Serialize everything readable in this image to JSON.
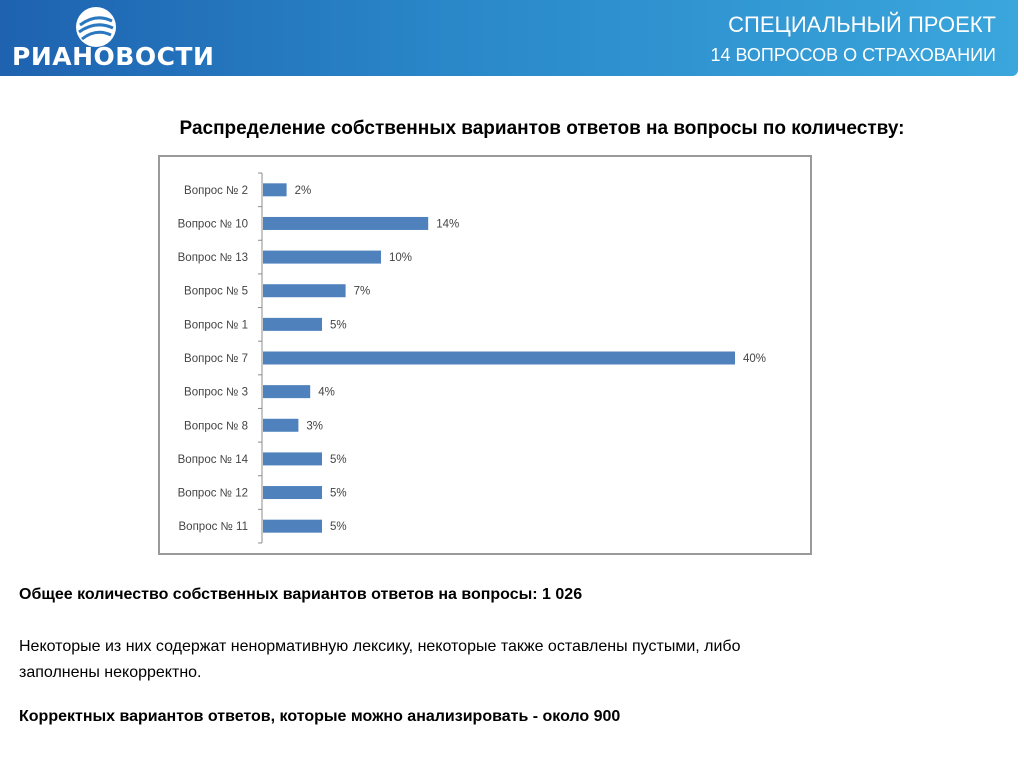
{
  "header": {
    "logo_text": "РИАНОВОСТИ",
    "title": "СПЕЦИАЛЬНЫЙ ПРОЕКТ",
    "subtitle": "14 ВОПРОСОВ О СТРАХОВАНИИ"
  },
  "chart_data": {
    "type": "bar",
    "orientation": "horizontal",
    "title": "Распределение собственных вариантов ответов на вопросы по количеству:",
    "categories": [
      "Вопрос № 2",
      "Вопрос № 10",
      "Вопрос № 13",
      "Вопрос № 5",
      "Вопрос № 1",
      "Вопрос № 7",
      "Вопрос № 3",
      "Вопрос № 8",
      "Вопрос № 14",
      "Вопрос № 12",
      "Вопрос № 11"
    ],
    "values": [
      2,
      14,
      10,
      7,
      5,
      40,
      4,
      3,
      5,
      5,
      5
    ],
    "value_labels": [
      "2%",
      "14%",
      "10%",
      "7%",
      "5%",
      "40%",
      "4%",
      "3%",
      "5%",
      "5%",
      "5%"
    ],
    "bar_color": "#4f81bd",
    "grid": false,
    "legend": "none"
  },
  "bottom": {
    "total": "Общее количество собственных вариантов ответов на вопросы: 1 026",
    "note_line1": "Некоторые из них содержат ненормативную лексику, некоторые также оставлены пустыми, либо",
    "note_line2": "заполнены некорректно.",
    "correct": "Корректных вариантов ответов, которые можно анализировать  - около 900"
  }
}
